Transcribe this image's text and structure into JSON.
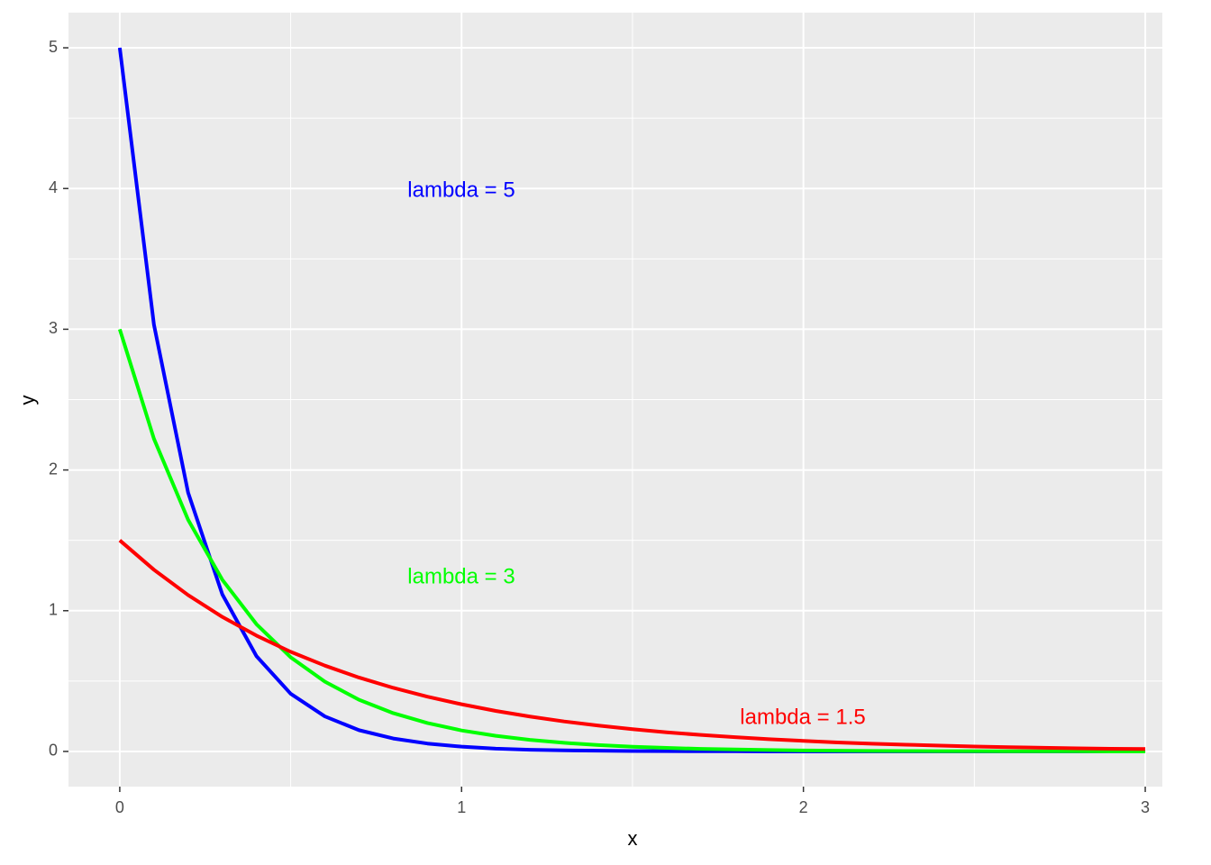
{
  "chart_data": {
    "type": "line",
    "x_label": "x",
    "y_label": "y",
    "x": [
      0,
      0.1,
      0.2,
      0.3,
      0.4,
      0.5,
      0.6,
      0.7,
      0.8,
      0.9,
      1.0,
      1.1,
      1.2,
      1.3,
      1.4,
      1.5,
      1.6,
      1.7,
      1.8,
      1.9,
      2.0,
      2.1,
      2.2,
      2.3,
      2.4,
      2.5,
      2.6,
      2.7,
      2.8,
      2.9,
      3.0
    ],
    "series": [
      {
        "name": "lambda = 5",
        "color": "#0000ff",
        "values": [
          5,
          3.033,
          1.839,
          1.116,
          0.677,
          0.41,
          0.249,
          0.151,
          0.092,
          0.056,
          0.034,
          0.02,
          0.012,
          0.008,
          0.005,
          0.003,
          0.002,
          0.001,
          0.001,
          0,
          0,
          0,
          0,
          0,
          0,
          0,
          0,
          0,
          0,
          0,
          0
        ]
      },
      {
        "name": "lambda = 3",
        "color": "#00ff00",
        "values": [
          3,
          2.222,
          1.646,
          1.22,
          0.904,
          0.669,
          0.496,
          0.367,
          0.272,
          0.202,
          0.149,
          0.111,
          0.082,
          0.061,
          0.045,
          0.033,
          0.025,
          0.018,
          0.014,
          0.01,
          0.007,
          0.005,
          0.004,
          0.003,
          0.002,
          0.002,
          0.001,
          0.001,
          0.001,
          0,
          0
        ]
      },
      {
        "name": "lambda = 1.5",
        "color": "#ff0000",
        "values": [
          1.5,
          1.291,
          1.111,
          0.956,
          0.823,
          0.708,
          0.61,
          0.525,
          0.452,
          0.389,
          0.335,
          0.288,
          0.248,
          0.213,
          0.184,
          0.158,
          0.136,
          0.117,
          0.101,
          0.087,
          0.075,
          0.064,
          0.055,
          0.048,
          0.041,
          0.035,
          0.03,
          0.026,
          0.022,
          0.019,
          0.017
        ]
      }
    ],
    "xlim": [
      -0.15,
      3.05
    ],
    "ylim": [
      -0.25,
      5.25
    ],
    "xticks": [
      0,
      1,
      2,
      3
    ],
    "yticks": [
      0,
      1,
      2,
      3,
      4,
      5
    ],
    "grid": true
  }
}
